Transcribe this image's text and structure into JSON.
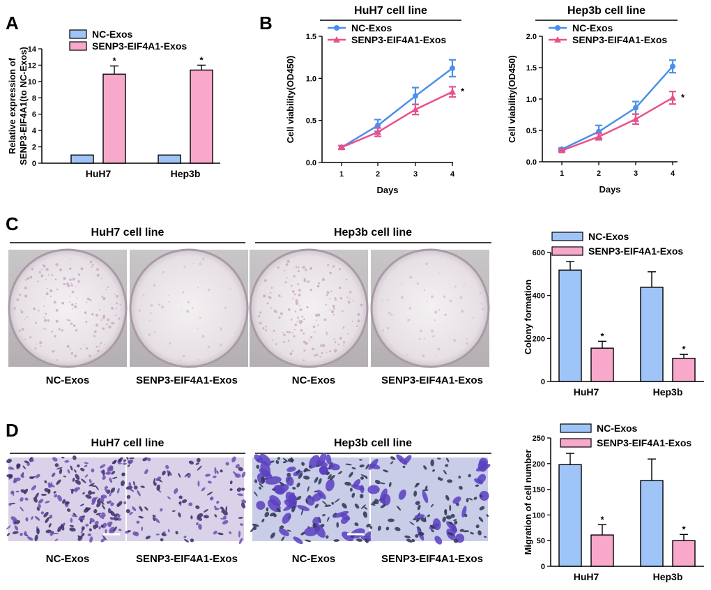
{
  "panel_labels": [
    "A",
    "B",
    "C",
    "D"
  ],
  "colors": {
    "nc_bar": "#9FC5F8",
    "senp3_bar": "#F7A8CB",
    "nc_line": "#4A90E8",
    "senp3_line": "#E8508C",
    "huh7_crystal_stain": "#C9A6C6",
    "hep3b_crystal_stain": "#D8BCD6",
    "migration_purple": "#5A3FC0"
  },
  "panel_c": {
    "title_huh7": "HuH7 cell line",
    "title_hep3b": "Hep3b cell line",
    "captions": [
      "NC-Exos",
      "SENP3-EIF4A1-Exos",
      "NC-Exos",
      "SENP3-EIF4A1-Exos"
    ]
  },
  "panel_d": {
    "title_huh7": "HuH7 cell line",
    "title_hep3b": "Hep3b cell line",
    "captions": [
      "NC-Exos",
      "SENP3-EIF4A1-Exos",
      "NC-Exos",
      "SENP3-EIF4A1-Exos"
    ]
  },
  "chart_data": [
    {
      "id": "A",
      "type": "bar",
      "title": "",
      "categories": [
        "HuH7",
        "Hep3b"
      ],
      "series": [
        {
          "name": "NC-Exos",
          "values": [
            1,
            1
          ],
          "errors": [
            0,
            0
          ],
          "sig": [
            "",
            ""
          ]
        },
        {
          "name": "SENP3-EIF4A1-Exos",
          "values": [
            10.9,
            11.4
          ],
          "errors": [
            1.0,
            0.6
          ],
          "sig": [
            "*",
            "*"
          ]
        }
      ],
      "ylabel": "Relative expression of SENP3-EIF4A1(to NC-Exos)",
      "ylabel_lines": [
        "Relative expression of",
        "SENP3-EIF4A1(to NC-Exos)"
      ],
      "xlabel": "",
      "ylim": [
        0,
        14
      ],
      "yticks": [
        0,
        2,
        4,
        6,
        8,
        10,
        12,
        14
      ],
      "legend": [
        "NC-Exos",
        "SENP3-EIF4A1-Exos"
      ],
      "legend_position": "top-left"
    },
    {
      "id": "B1",
      "type": "line",
      "title": "HuH7 cell line",
      "x": [
        1,
        2,
        3,
        4
      ],
      "series": [
        {
          "name": "NC-Exos",
          "values": [
            0.18,
            0.44,
            0.79,
            1.12
          ],
          "errors": [
            0.02,
            0.07,
            0.1,
            0.1
          ]
        },
        {
          "name": "SENP3-EIF4A1-Exos",
          "values": [
            0.18,
            0.36,
            0.63,
            0.84
          ],
          "errors": [
            0.02,
            0.05,
            0.06,
            0.06
          ]
        }
      ],
      "annotation": "*",
      "xlabel": "Days",
      "ylabel": "Cell viability(OD450)",
      "ylim": [
        0,
        1.5
      ],
      "yticks": [
        0.0,
        0.5,
        1.0,
        1.5
      ],
      "ytick_labels": [
        "0.0",
        "0.5",
        "1.0",
        "1.5"
      ],
      "legend": [
        "NC-Exos",
        "SENP3-EIF4A1-Exos"
      ],
      "legend_position": "top-left"
    },
    {
      "id": "B2",
      "type": "line",
      "title": "Hep3b cell line",
      "x": [
        1,
        2,
        3,
        4
      ],
      "series": [
        {
          "name": "NC-Exos",
          "values": [
            0.2,
            0.48,
            0.86,
            1.52
          ],
          "errors": [
            0.02,
            0.1,
            0.1,
            0.1
          ]
        },
        {
          "name": "SENP3-EIF4A1-Exos",
          "values": [
            0.18,
            0.4,
            0.68,
            1.02
          ],
          "errors": [
            0.02,
            0.05,
            0.08,
            0.1
          ]
        }
      ],
      "annotation": "*",
      "xlabel": "Days",
      "ylabel": "Cell viability(OD450)",
      "ylim": [
        0,
        2.0
      ],
      "yticks": [
        0.0,
        0.5,
        1.0,
        1.5,
        2.0
      ],
      "ytick_labels": [
        "0.0",
        "0.5",
        "1.0",
        "1.5",
        "2.0"
      ],
      "legend": [
        "NC-Exos",
        "SENP3-EIF4A1-Exos"
      ],
      "legend_position": "top-left"
    },
    {
      "id": "C",
      "type": "bar",
      "title": "",
      "categories": [
        "HuH7",
        "Hep3b"
      ],
      "series": [
        {
          "name": "NC-Exos",
          "values": [
            518,
            438
          ],
          "errors": [
            40,
            72
          ],
          "sig": [
            "",
            ""
          ]
        },
        {
          "name": "SENP3-EIF4A1-Exos",
          "values": [
            155,
            108
          ],
          "errors": [
            32,
            18
          ],
          "sig": [
            "*",
            "*"
          ]
        }
      ],
      "ylabel": "Colony formation",
      "ylabel_lines": [
        "Colony formation"
      ],
      "xlabel": "",
      "ylim": [
        0,
        600
      ],
      "yticks": [
        0,
        200,
        400,
        600
      ],
      "legend": [
        "NC-Exos",
        "SENP3-EIF4A1-Exos"
      ],
      "legend_position": "top-right"
    },
    {
      "id": "D",
      "type": "bar",
      "title": "",
      "categories": [
        "HuH7",
        "Hep3b"
      ],
      "series": [
        {
          "name": "NC-Exos",
          "values": [
            198,
            167
          ],
          "errors": [
            22,
            42
          ],
          "sig": [
            "",
            ""
          ]
        },
        {
          "name": "SENP3-EIF4A1-Exos",
          "values": [
            61,
            50
          ],
          "errors": [
            20,
            12
          ],
          "sig": [
            "*",
            "*"
          ]
        }
      ],
      "ylabel": "Migration of cell number",
      "ylabel_lines": [
        "Migration of cell number"
      ],
      "xlabel": "",
      "ylim": [
        0,
        250
      ],
      "yticks": [
        0,
        50,
        100,
        150,
        200,
        250
      ],
      "legend": [
        "NC-Exos",
        "SENP3-EIF4A1-Exos"
      ],
      "legend_position": "top-right"
    }
  ]
}
